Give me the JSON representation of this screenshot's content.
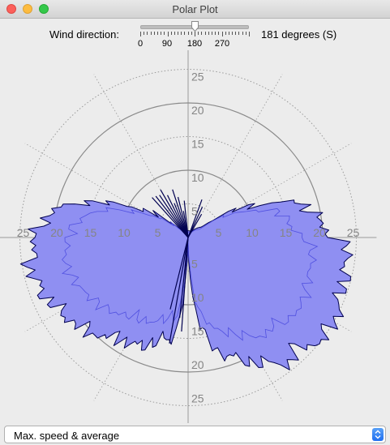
{
  "window": {
    "title": "Polar Plot"
  },
  "controls": {
    "wind_direction_label": "Wind direction:",
    "wind_direction_value": "181 degrees (S)",
    "slider": {
      "value": 181,
      "min": 0,
      "max": 360,
      "tick_labels": [
        "0",
        "90",
        "180",
        "270"
      ]
    }
  },
  "plot": {
    "ring_labels": [
      "5",
      "10",
      "15",
      "20",
      "25"
    ],
    "colors": {
      "fill": "#8f8ff2",
      "outline": "#000050",
      "average": "#5050e0",
      "ring": "#8a8a8a"
    }
  },
  "display_select": {
    "value": "Max. speed & average"
  },
  "icons": {
    "dropdown": "updown-chevron-icon",
    "slider_thumb": "slider-thumb-icon"
  }
}
